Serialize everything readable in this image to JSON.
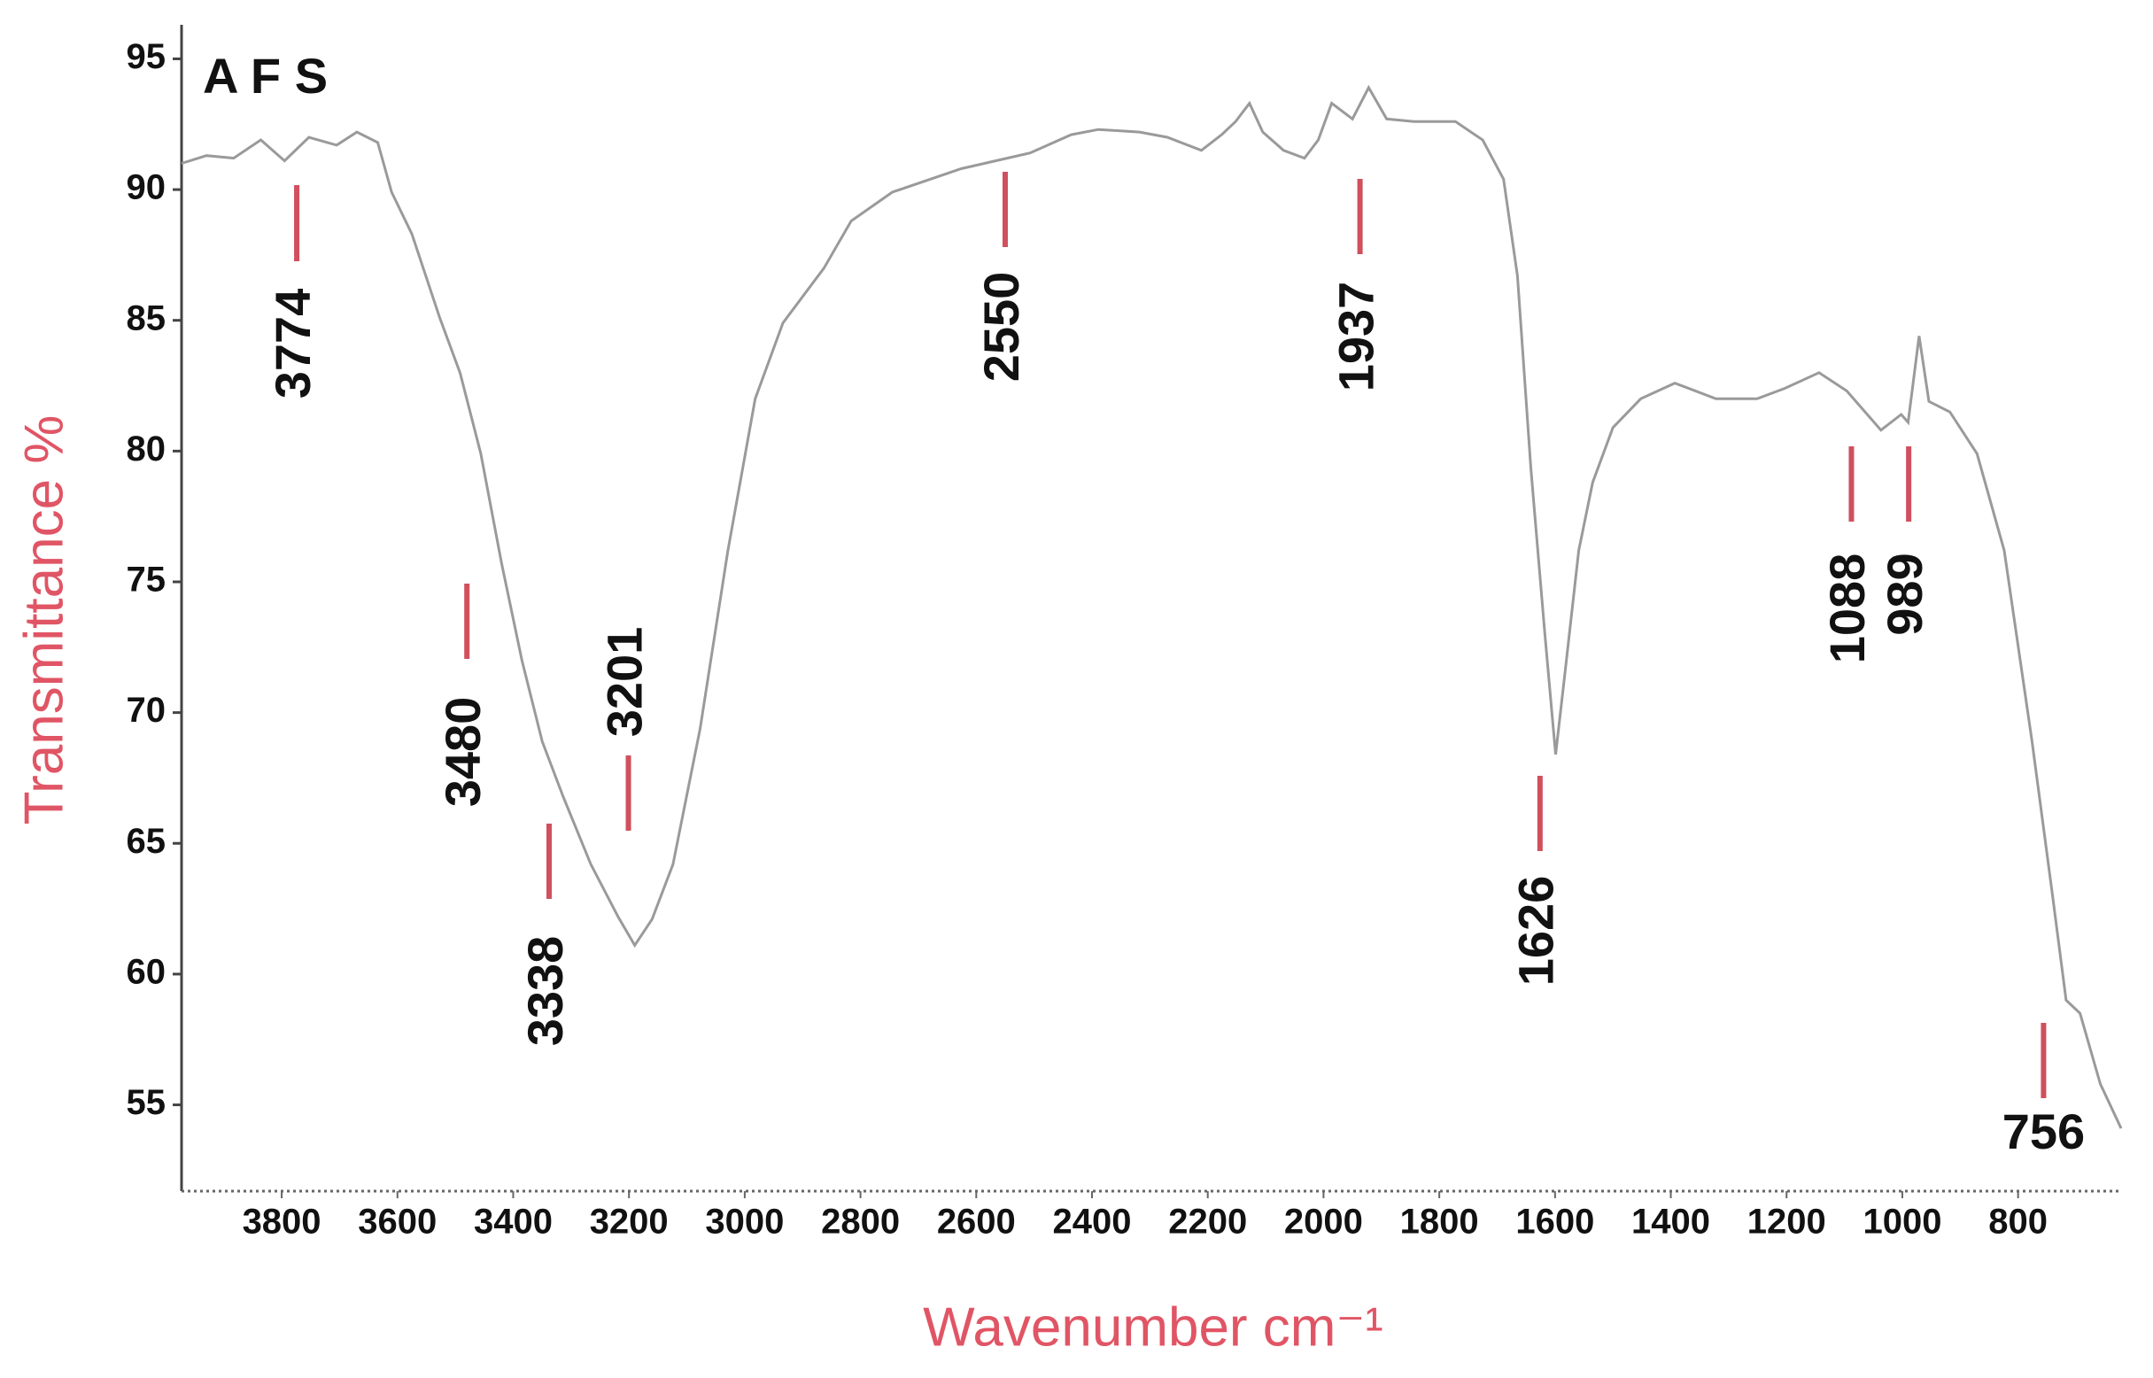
{
  "chart_data": {
    "type": "line",
    "title": "A F S",
    "x_label": "Wavenumber cm⁻¹",
    "y_label": "Transmittance %",
    "color": "#9a9a9a",
    "annotation_color": "#d0505e",
    "x": [
      3973,
      3930,
      3883,
      3836,
      3795,
      3753,
      3705,
      3670,
      3634,
      3610,
      3575,
      3527,
      3492,
      3456,
      3420,
      3385,
      3350,
      3314,
      3266,
      3219,
      3190,
      3160,
      3124,
      3077,
      3029,
      2982,
      2934,
      2863,
      2816,
      2745,
      2626,
      2507,
      2436,
      2389,
      2318,
      2270,
      2211,
      2176,
      2152,
      2128,
      2105,
      2069,
      2033,
      2009,
      1986,
      1950,
      1922,
      1891,
      1844,
      1772,
      1725,
      1689,
      1665,
      1642,
      1618,
      1599,
      1583,
      1559,
      1535,
      1500,
      1452,
      1393,
      1322,
      1251,
      1203,
      1144,
      1096,
      1037,
      1002,
      990,
      971,
      954,
      918,
      871,
      824,
      776,
      741,
      717,
      693,
      658,
      622
    ],
    "values": [
      91.0,
      91.3,
      91.2,
      91.9,
      91.1,
      92.0,
      91.7,
      92.2,
      91.8,
      89.9,
      88.3,
      85.1,
      83.0,
      79.9,
      75.7,
      72.0,
      68.9,
      66.8,
      64.2,
      62.2,
      61.1,
      62.1,
      64.2,
      69.4,
      76.2,
      82.0,
      84.9,
      87.0,
      88.8,
      89.9,
      90.8,
      91.4,
      92.1,
      92.3,
      92.2,
      92.0,
      91.5,
      92.1,
      92.6,
      93.3,
      92.2,
      91.5,
      91.2,
      91.9,
      93.3,
      92.7,
      93.9,
      92.7,
      92.6,
      92.6,
      91.9,
      90.4,
      86.7,
      79.4,
      73.1,
      68.4,
      71.5,
      76.2,
      78.8,
      80.9,
      82.0,
      82.6,
      82.0,
      82.0,
      82.4,
      83.0,
      82.3,
      80.8,
      81.4,
      81.1,
      84.4,
      81.9,
      81.5,
      79.9,
      76.2,
      68.9,
      63.1,
      59.0,
      58.5,
      55.8,
      54.1
    ],
    "annotations": [
      3774,
      3480,
      3338,
      3201,
      2550,
      1937,
      1626,
      1088,
      989,
      756
    ],
    "xlim": [
      3973,
      622
    ],
    "ylim": [
      51.7,
      96.2
    ],
    "xticks": [
      3800,
      3600,
      3400,
      3200,
      3000,
      2800,
      2600,
      2400,
      2200,
      2000,
      1800,
      1600,
      1400,
      1200,
      1000,
      800
    ],
    "yticks": [
      55,
      60,
      65,
      70,
      75,
      80,
      85,
      90,
      95
    ],
    "grid": false
  }
}
